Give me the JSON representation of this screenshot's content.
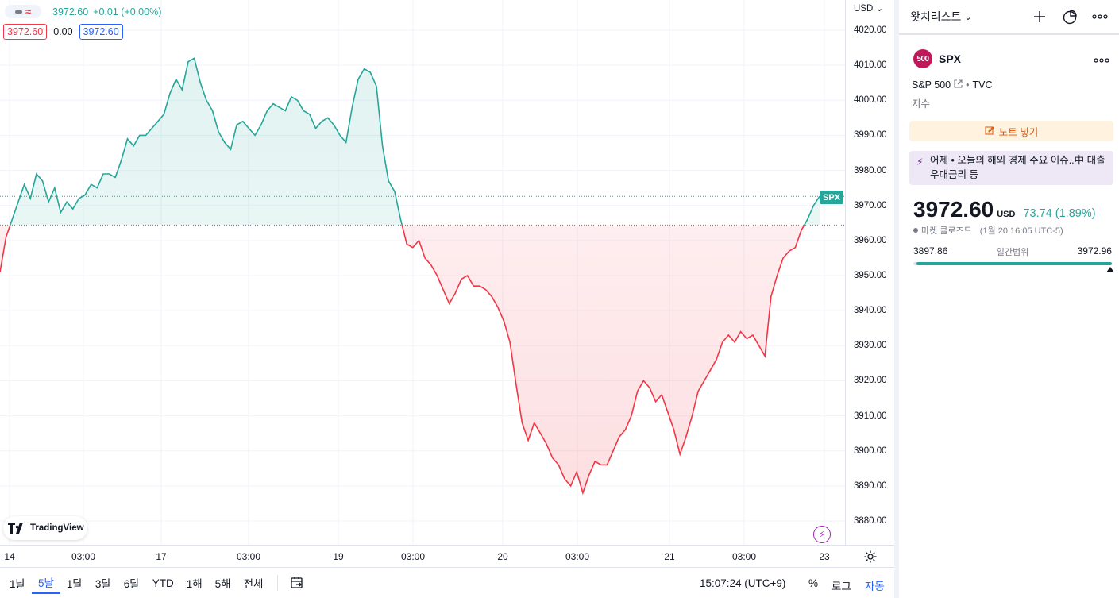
{
  "legend": {
    "last": "3972.60",
    "change": "+0.01 (+0.00%)",
    "bid": "3972.60",
    "spread": "0.00",
    "ask": "3972.60"
  },
  "brand": "TradingView",
  "currency": "USD",
  "symbol_badge": "SPX",
  "chart_data": {
    "type": "area",
    "baseline": 3964.4,
    "last_price": 3972.6,
    "ylim": [
      3876,
      4025
    ],
    "yticks": [
      "4020.00",
      "4010.00",
      "4000.00",
      "3990.00",
      "3980.00",
      "3970.00",
      "3960.00",
      "3950.00",
      "3940.00",
      "3930.00",
      "3920.00",
      "3910.00",
      "3900.00",
      "3890.00",
      "3880.00"
    ],
    "xticks": [
      "14",
      "03:00",
      "17",
      "03:00",
      "19",
      "03:00",
      "20",
      "03:00",
      "21",
      "03:00",
      "23"
    ],
    "colors": {
      "up": "#26a69a",
      "down": "#f23645"
    },
    "y": [
      3951,
      3961,
      3966,
      3971,
      3976,
      3972,
      3979,
      3977,
      3971,
      3975,
      3968,
      3971,
      3969,
      3972,
      3973,
      3976,
      3975,
      3979,
      3979,
      3978,
      3983,
      3989,
      3987,
      3990,
      3990,
      3992,
      3994,
      3996,
      4002,
      4006,
      4003,
      4011,
      4012,
      4005,
      4000,
      3997,
      3991,
      3988,
      3986,
      3993,
      3994,
      3992,
      3990,
      3993,
      3997,
      3999,
      3998,
      3997,
      4001,
      4000,
      3997,
      3996,
      3992,
      3994,
      3995,
      3993,
      3990,
      3988,
      3998,
      4006,
      4009,
      4008,
      4004,
      3987,
      3977,
      3974,
      3966,
      3959,
      3958,
      3960,
      3955,
      3953,
      3950,
      3946,
      3942,
      3945,
      3949,
      3950,
      3947,
      3947,
      3946,
      3944,
      3941,
      3937,
      3931,
      3919,
      3908,
      3903,
      3908,
      3905,
      3902,
      3898,
      3896,
      3892,
      3890,
      3894,
      3888,
      3893,
      3897,
      3896,
      3896,
      3900,
      3904,
      3906,
      3910,
      3917,
      3920,
      3918,
      3914,
      3916,
      3911,
      3906,
      3899,
      3904,
      3910,
      3917,
      3920,
      3923,
      3926,
      3931,
      3933,
      3931,
      3934,
      3932,
      3933,
      3930,
      3927,
      3944,
      3950,
      3955,
      3957,
      3958,
      3963,
      3966,
      3970,
      3972.6
    ]
  },
  "time_scale": {
    "settings_icon": "gear-icon"
  },
  "bottom_bar": {
    "ranges": [
      "1날",
      "5날",
      "1달",
      "3달",
      "6달",
      "YTD",
      "1해",
      "5해",
      "전체"
    ],
    "active_range": "5날",
    "clock": "15:07:24 (UTC+9)",
    "percent": "%",
    "log": "로그",
    "auto": "자동"
  },
  "watchlist": {
    "title": "왓치리스트",
    "symbol_logo": "500",
    "symbol": "SPX",
    "description": "S&P 500",
    "exchange": "TVC",
    "type": "지수",
    "note_button": "노트 넣기",
    "news": "어제 • 오늘의 해외 경제 주요 이슈..中 대출우대금리 등",
    "price": "3972.60",
    "price_currency": "USD",
    "change": "73.74 (1.89%)",
    "market_status": "마켓 클로즈드",
    "market_time": "(1월 20 16:05 UTC-5)",
    "day_low": "3897.86",
    "day_range_label": "일간범위",
    "day_high": "3972.96",
    "day_position": 0.985
  }
}
